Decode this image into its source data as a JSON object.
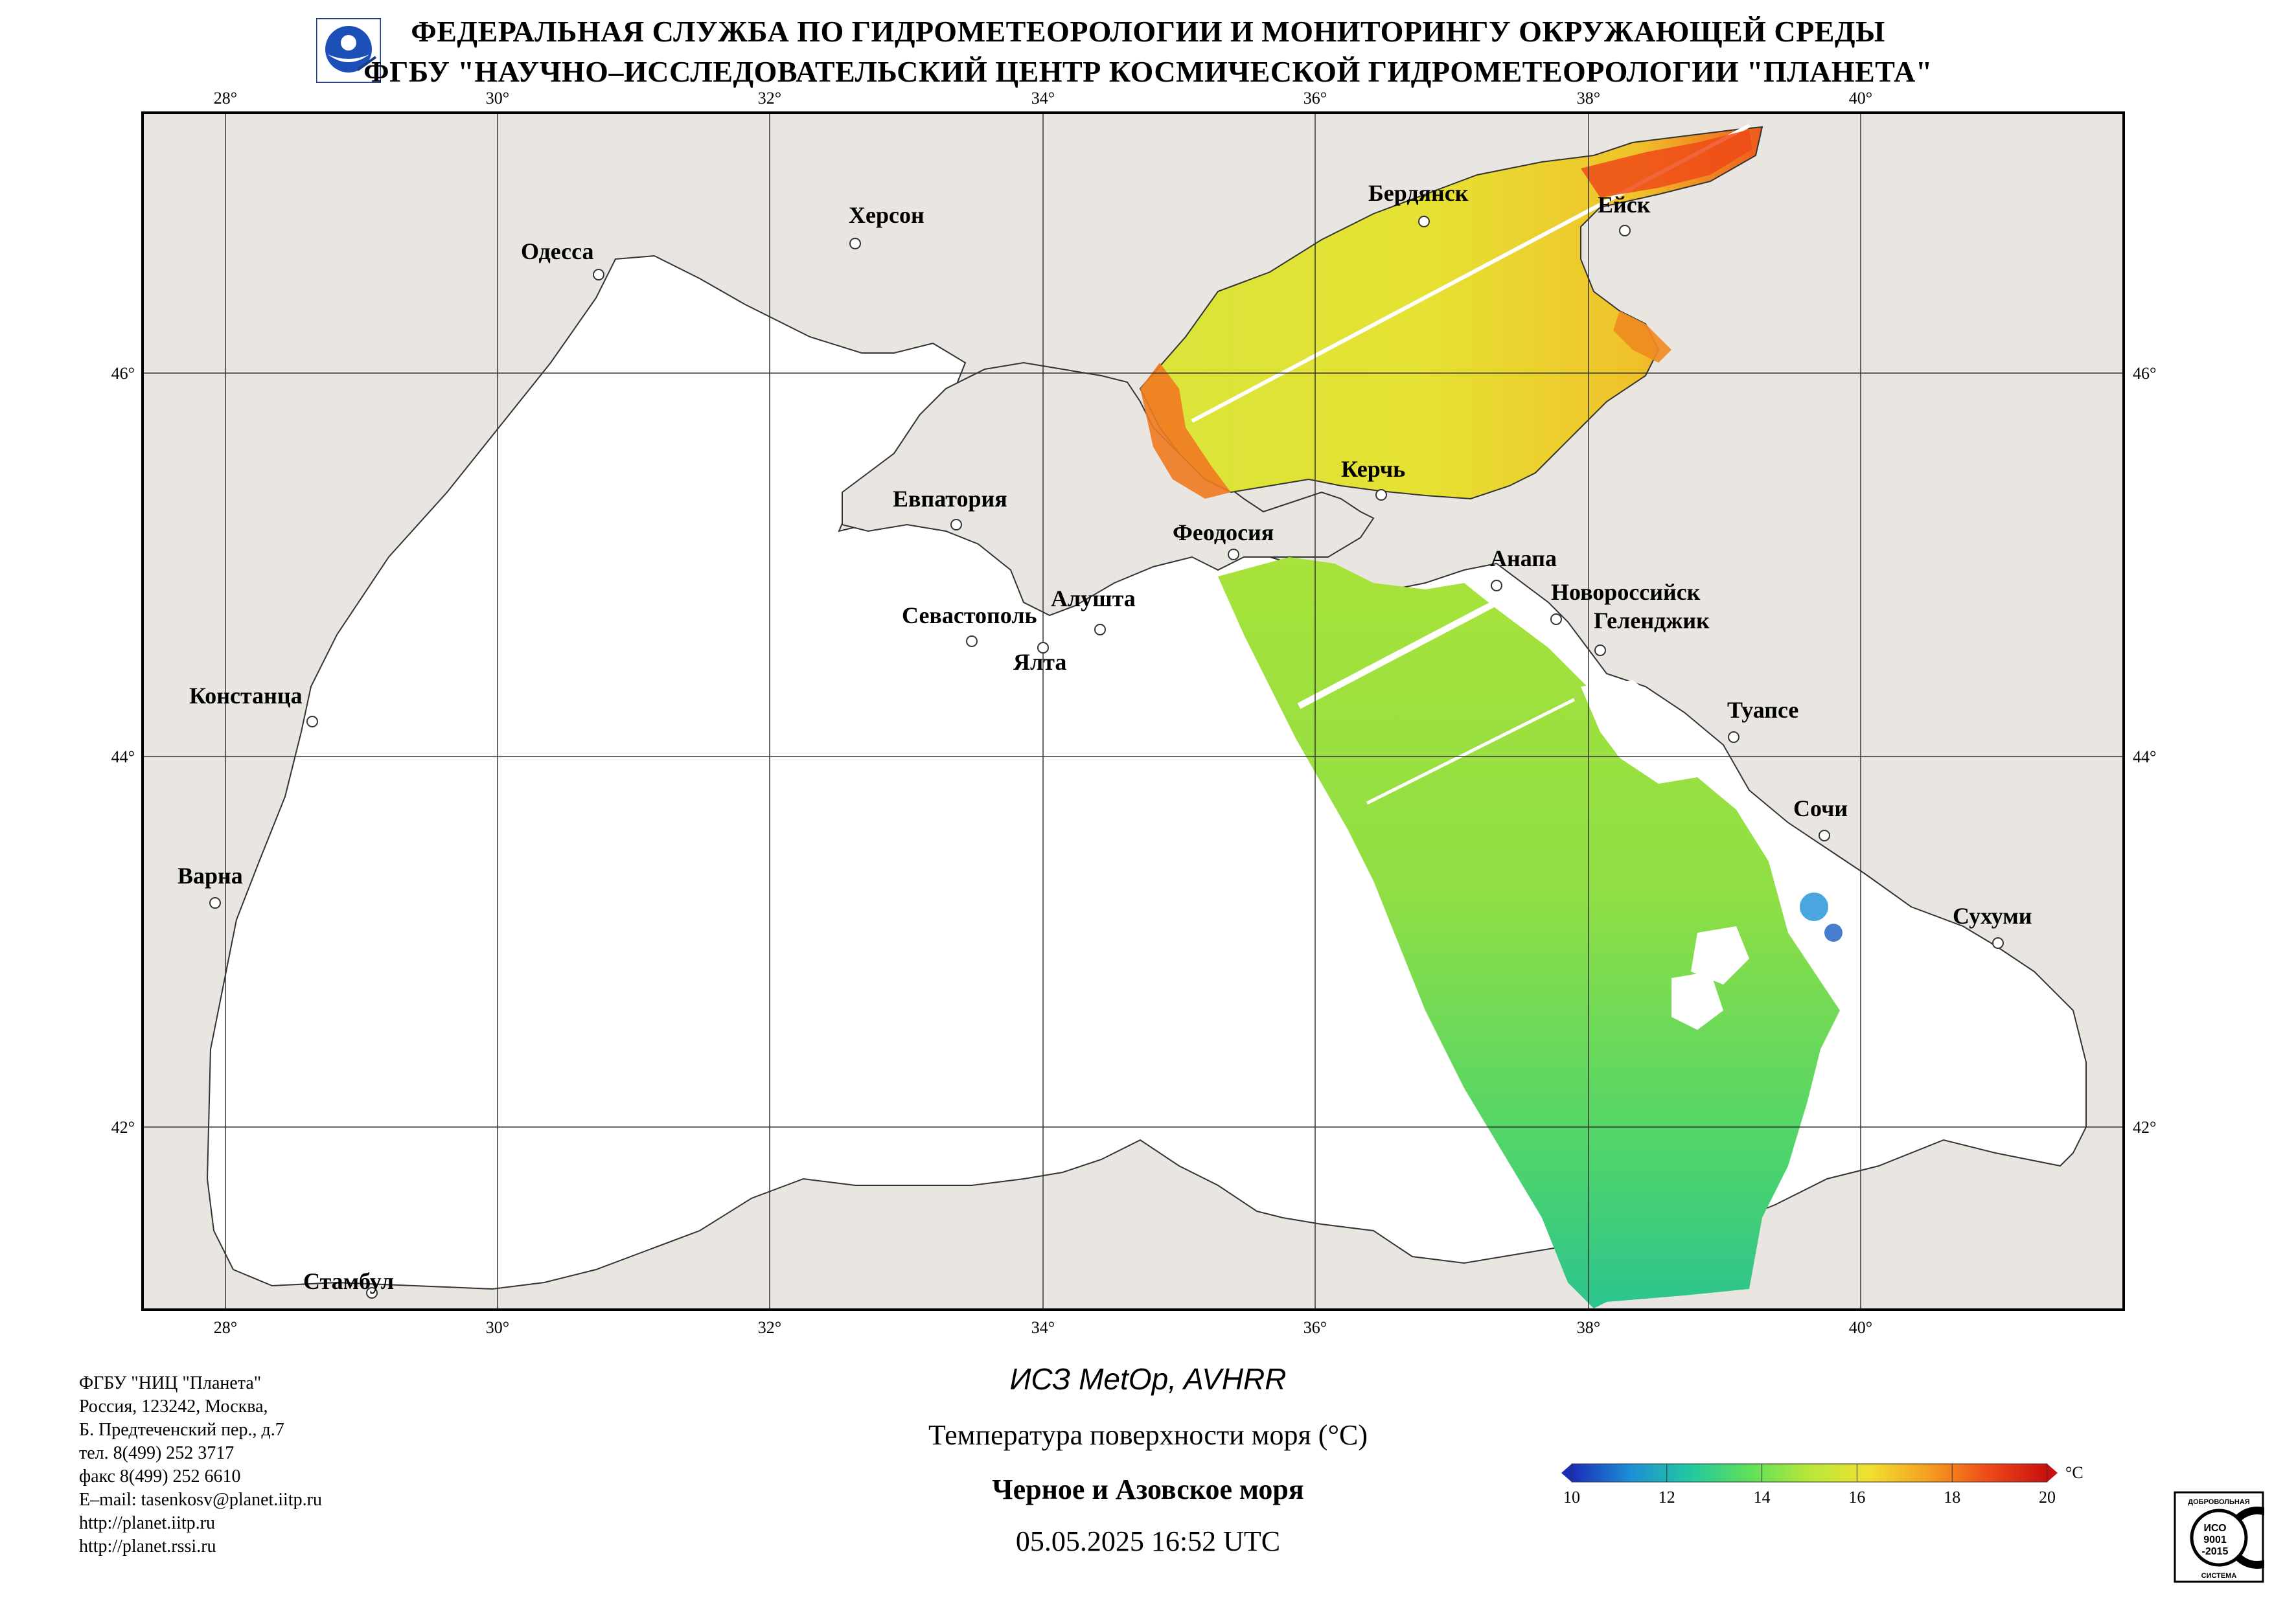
{
  "header": {
    "line1": "ФЕДЕРАЛЬНАЯ СЛУЖБА ПО ГИДРОМЕТЕОРОЛОГИИ И МОНИТОРИНГУ ОКРУЖАЮЩЕЙ СРЕДЫ",
    "line2": "ФГБУ \"НАУЧНО–ИССЛЕДОВАТЕЛЬСКИЙ ЦЕНТР КОСМИЧЕСКОЙ ГИДРОМЕТЕОРОЛОГИИ \"ПЛАНЕТА\""
  },
  "map": {
    "lon_labels": [
      "28°",
      "30°",
      "32°",
      "34°",
      "36°",
      "38°",
      "40°"
    ],
    "lat_labels": [
      "46°",
      "44°",
      "42°"
    ],
    "cities": [
      {
        "name": "Херсон"
      },
      {
        "name": "Одесса"
      },
      {
        "name": "Бердянск"
      },
      {
        "name": "Ейск"
      },
      {
        "name": "Керчь"
      },
      {
        "name": "Евпатория"
      },
      {
        "name": "Феодосия"
      },
      {
        "name": "Анапа"
      },
      {
        "name": "Новороссийск"
      },
      {
        "name": "Геленджик"
      },
      {
        "name": "Алушта"
      },
      {
        "name": "Севастополь"
      },
      {
        "name": "Ялта"
      },
      {
        "name": "Констанца"
      },
      {
        "name": "Туапсе"
      },
      {
        "name": "Сочи"
      },
      {
        "name": "Варна"
      },
      {
        "name": "Сухуми"
      },
      {
        "name": "Стамбул"
      }
    ],
    "colors": {
      "land": "#e9e6e2",
      "sea": "#ffffff",
      "border": "#000000"
    }
  },
  "contact": [
    "ФГБУ \"НИЦ \"Планета\"",
    "Россия, 123242, Москва,",
    "Б. Предтеченский пер., д.7",
    "тел. 8(499) 252 3717",
    "факс 8(499) 252 6610",
    "E–mail: tasenkosv@planet.iitp.ru",
    "http://planet.iitp.ru",
    "http://planet.rssi.ru"
  ],
  "caption": {
    "satellite": "ИСЗ MetOp, AVHRR",
    "parameter": "Температура поверхности моря (°С)",
    "region": "Черное и Азовское моря",
    "datetime": "05.05.2025 16:52 UTC"
  },
  "colorbar": {
    "unit": "°С",
    "ticks": [
      "10",
      "12",
      "14",
      "16",
      "18",
      "20"
    ],
    "range": [
      10,
      20
    ],
    "stops": [
      "#1a2db8",
      "#1e8fd6",
      "#22c8a0",
      "#5fe05a",
      "#b8e83a",
      "#f0e030",
      "#f5a020",
      "#ee4a18",
      "#c81010"
    ]
  },
  "iso_badge": {
    "top": "ДОБРОВОЛЬНАЯ",
    "l1": "ИСО",
    "l2": "9001",
    "l3": "-2015",
    "bottom": "СИСТЕМА"
  }
}
